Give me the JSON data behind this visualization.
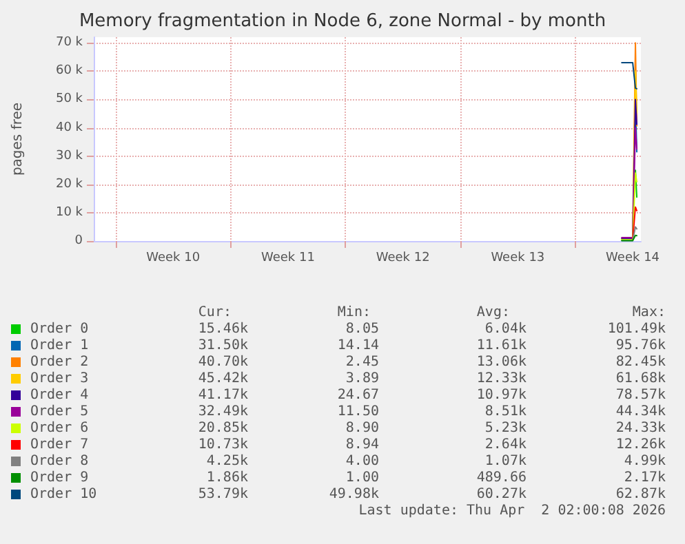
{
  "chart_data": {
    "type": "line",
    "title": "Memory fragmentation in Node 6, zone Normal - by month",
    "ylabel": "pages free",
    "x": [
      "2026-04-01T20:00",
      "2026-04-02T12:00",
      "2026-04-02T16:00",
      "2026-04-02T18:00"
    ],
    "xlim": [
      "2026-02-28T16:00",
      "2026-04-03T00:00"
    ],
    "xticks": [
      {
        "value": "2026-03-02T00:00",
        "label": null
      },
      {
        "value": "2026-03-05T12:00",
        "label": "Week 10"
      },
      {
        "value": "2026-03-09T00:00",
        "label": null
      },
      {
        "value": "2026-03-12T12:00",
        "label": "Week 11"
      },
      {
        "value": "2026-03-16T00:00",
        "label": null
      },
      {
        "value": "2026-03-19T12:00",
        "label": "Week 12"
      },
      {
        "value": "2026-03-23T00:00",
        "label": null
      },
      {
        "value": "2026-03-26T12:00",
        "label": "Week 13"
      },
      {
        "value": "2026-03-30T00:00",
        "label": null
      },
      {
        "value": "2026-04-02T12:00",
        "label": "Week 14"
      }
    ],
    "ylim": [
      0,
      72000
    ],
    "yticks": [
      0,
      {
        "value": 10000,
        "label": "10 k"
      },
      {
        "value": 20000,
        "label": "20 k"
      },
      {
        "value": 30000,
        "label": "30 k"
      },
      {
        "value": 40000,
        "label": "40 k"
      },
      {
        "value": 50000,
        "label": "50 k"
      },
      {
        "value": 60000,
        "label": "60 k"
      },
      {
        "value": 70000,
        "label": "70 k"
      }
    ],
    "grid": true,
    "legend": "bottom left",
    "marker": "none",
    "line_style": "solid",
    "series": [
      {
        "name": "Order 0",
        "color": "#00cc00",
        "values": [
          null,
          null,
          25000,
          15500
        ]
      },
      {
        "name": "Order 1",
        "color": "#0066b3",
        "values": [
          null,
          null,
          50000,
          31500
        ]
      },
      {
        "name": "Order 2",
        "color": "#ff8000",
        "values": [
          800,
          800,
          70000,
          40700
        ]
      },
      {
        "name": "Order 3",
        "color": "#ffcc00",
        "values": [
          800,
          800,
          60000,
          45400
        ]
      },
      {
        "name": "Order 4",
        "color": "#330099",
        "values": [
          1000,
          1000,
          50000,
          41200
        ]
      },
      {
        "name": "Order 5",
        "color": "#990099",
        "values": [
          1200,
          1200,
          40000,
          32500
        ]
      },
      {
        "name": "Order 6",
        "color": "#ccff00",
        "values": [
          500,
          500,
          24000,
          20900
        ]
      },
      {
        "name": "Order 7",
        "color": "#ff0000",
        "values": [
          null,
          300,
          12000,
          10700
        ]
      },
      {
        "name": "Order 8",
        "color": "#808080",
        "values": [
          200,
          200,
          5000,
          4300
        ]
      },
      {
        "name": "Order 9",
        "color": "#008f00",
        "values": [
          100,
          100,
          2000,
          1900
        ]
      },
      {
        "name": "Order 10",
        "color": "#00487d",
        "values": [
          63000,
          63000,
          54000,
          53800
        ]
      }
    ],
    "annotations": [
      "Cur:",
      "Min:",
      "Avg:",
      "Max:",
      "15.46k",
      "8.05",
      "6.04k",
      "101.49k",
      "31.50k",
      "14.14",
      "11.61k",
      "95.76k",
      "40.70k",
      "2.45",
      "13.06k",
      "82.45k",
      "45.42k",
      "3.89",
      "12.33k",
      "61.68k",
      "41.17k",
      "24.67",
      "10.97k",
      "78.57k",
      "32.49k",
      "11.50",
      "8.51k",
      "44.34k",
      "20.85k",
      "8.90",
      "5.23k",
      "24.33k",
      "10.73k",
      "8.94",
      "2.64k",
      "12.26k",
      "4.25k",
      "4.00",
      "1.07k",
      "4.99k",
      "1.86k",
      "1.00",
      "489.66",
      "2.17k",
      "53.79k",
      "49.98k",
      "60.27k",
      "62.87k",
      "Last update: Thu Apr  2 02:00:08 2026"
    ]
  }
}
